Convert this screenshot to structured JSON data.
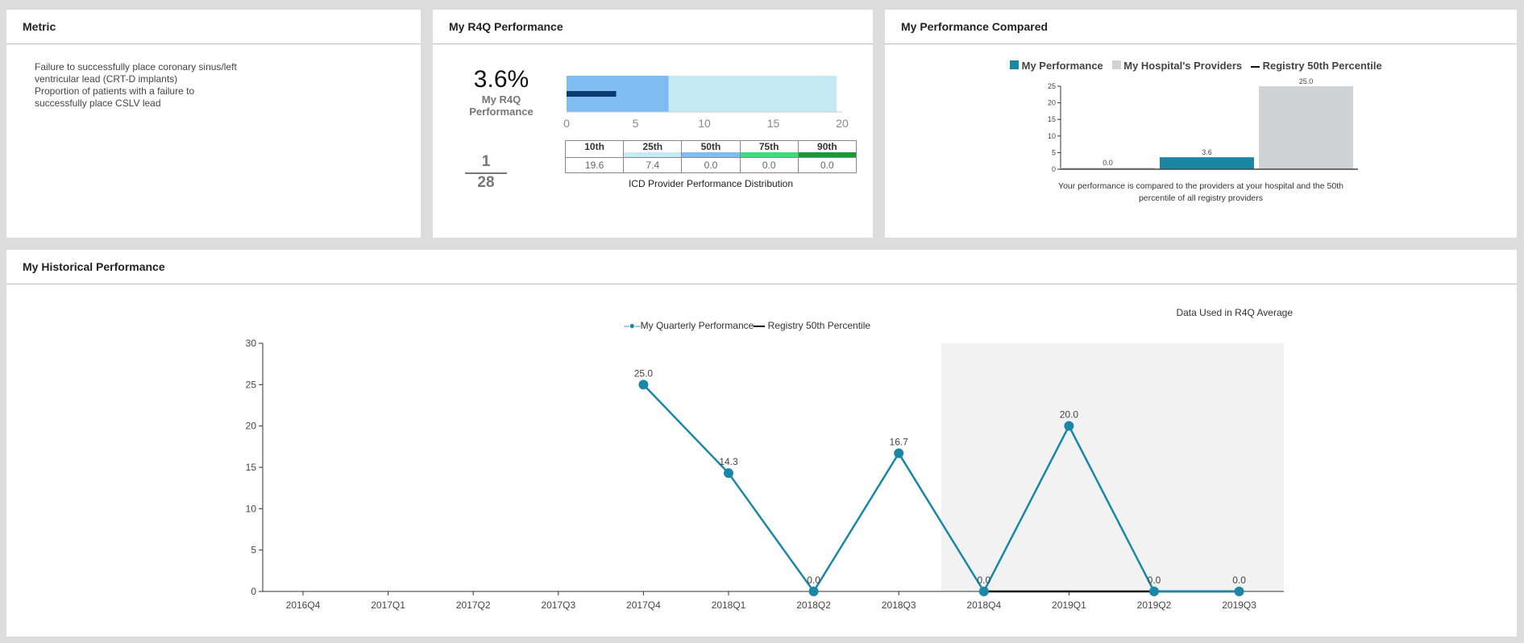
{
  "metric": {
    "title": "Metric",
    "lines": [
      "Failure to successfully place coronary sinus/left",
      "ventricular lead (CRT-D implants)",
      "Proportion of patients with a failure to",
      "successfully place CSLV lead"
    ]
  },
  "r4q": {
    "title": "My R4Q Performance",
    "value": "3.6%",
    "label1": "My R4Q",
    "label2": "Performance",
    "numerator": "1",
    "denominator": "28",
    "bullet": {
      "my_value": 3.6,
      "band_value": 7.4,
      "max": 19.6,
      "ticks": [
        "0",
        "5",
        "10",
        "15",
        "20"
      ]
    },
    "distribution": {
      "headers": [
        "10th",
        "25th",
        "50th",
        "75th",
        "90th"
      ],
      "values": [
        "19.6",
        "7.4",
        "0.0",
        "0.0",
        "0.0"
      ],
      "colors": [
        "#ffffff",
        "#c6eaf3",
        "#7fbcf2",
        "#3ddc7b",
        "#169c35"
      ],
      "caption": "ICD Provider Performance Distribution"
    }
  },
  "compared": {
    "title": "My Performance Compared",
    "legend": [
      "My Performance",
      "My Hospital's Providers",
      "Registry 50th Percentile"
    ],
    "caption1": "Your performance is compared to the providers at your hospital and the 50th",
    "caption2": "percentile of all registry providers",
    "chart_data": {
      "type": "bar",
      "values": [
        0.0,
        3.6,
        25.0
      ],
      "labels": [
        "0.0",
        "3.6",
        "25.0"
      ],
      "colors": [
        "#d0d3d6",
        "#1b87a6",
        "#d0d3d6"
      ],
      "ylim": [
        0,
        25
      ],
      "yticks": [
        "0",
        "5",
        "10",
        "15",
        "20",
        "25"
      ]
    }
  },
  "historical": {
    "title": "My Historical Performance",
    "r4q_note": "Data Used in R4Q Average",
    "chart_data": {
      "type": "line",
      "categories": [
        "2016Q4",
        "2017Q1",
        "2017Q2",
        "2017Q3",
        "2017Q4",
        "2018Q1",
        "2018Q2",
        "2018Q3",
        "2018Q4",
        "2019Q1",
        "2019Q2",
        "2019Q3"
      ],
      "series": [
        {
          "name": "My Quarterly Performance",
          "values": [
            null,
            null,
            null,
            null,
            25.0,
            14.3,
            0.0,
            16.7,
            0.0,
            20.0,
            0.0,
            0.0
          ],
          "labels": [
            "",
            "",
            "",
            "",
            "25.0",
            "14.3",
            "0.0",
            "16.7",
            "0.0",
            "20.0",
            "0.0",
            "0.0"
          ],
          "color": "#1b87a6"
        },
        {
          "name": "Registry 50th Percentile",
          "values": [
            null,
            null,
            null,
            null,
            null,
            null,
            null,
            null,
            0.0,
            0.0,
            0.0,
            0.0
          ],
          "color": "#111111"
        }
      ],
      "ylim": [
        0,
        30
      ],
      "yticks": [
        "0",
        "5",
        "10",
        "15",
        "20",
        "25",
        "30"
      ],
      "shaded_from": "2018Q4"
    }
  }
}
